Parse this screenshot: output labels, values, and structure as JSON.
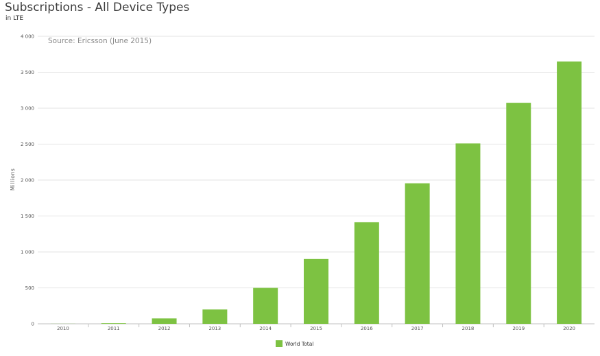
{
  "header": {
    "title": "Subscriptions - All Device Types",
    "subtitle": "in LTE"
  },
  "chart_data": {
    "type": "bar",
    "title": "Subscriptions - All Device Types",
    "subtitle": "in LTE",
    "annotation": "Source: Ericsson (June 2015)",
    "xlabel": "",
    "ylabel": "Millions",
    "categories": [
      "2010",
      "2011",
      "2012",
      "2013",
      "2014",
      "2015",
      "2016",
      "2017",
      "2018",
      "2019",
      "2020"
    ],
    "series": [
      {
        "name": "World Total",
        "color": "#7dc242",
        "values": [
          1,
          8,
          75,
          200,
          500,
          905,
          1415,
          1955,
          2510,
          3075,
          3650
        ]
      }
    ],
    "yticks": [
      "0",
      "500",
      "1 000",
      "1 500",
      "2 000",
      "2 500",
      "3 000",
      "3 500",
      "4 000"
    ],
    "ylim": [
      0,
      4000
    ],
    "grid": true,
    "legend_position": "bottom-center"
  }
}
